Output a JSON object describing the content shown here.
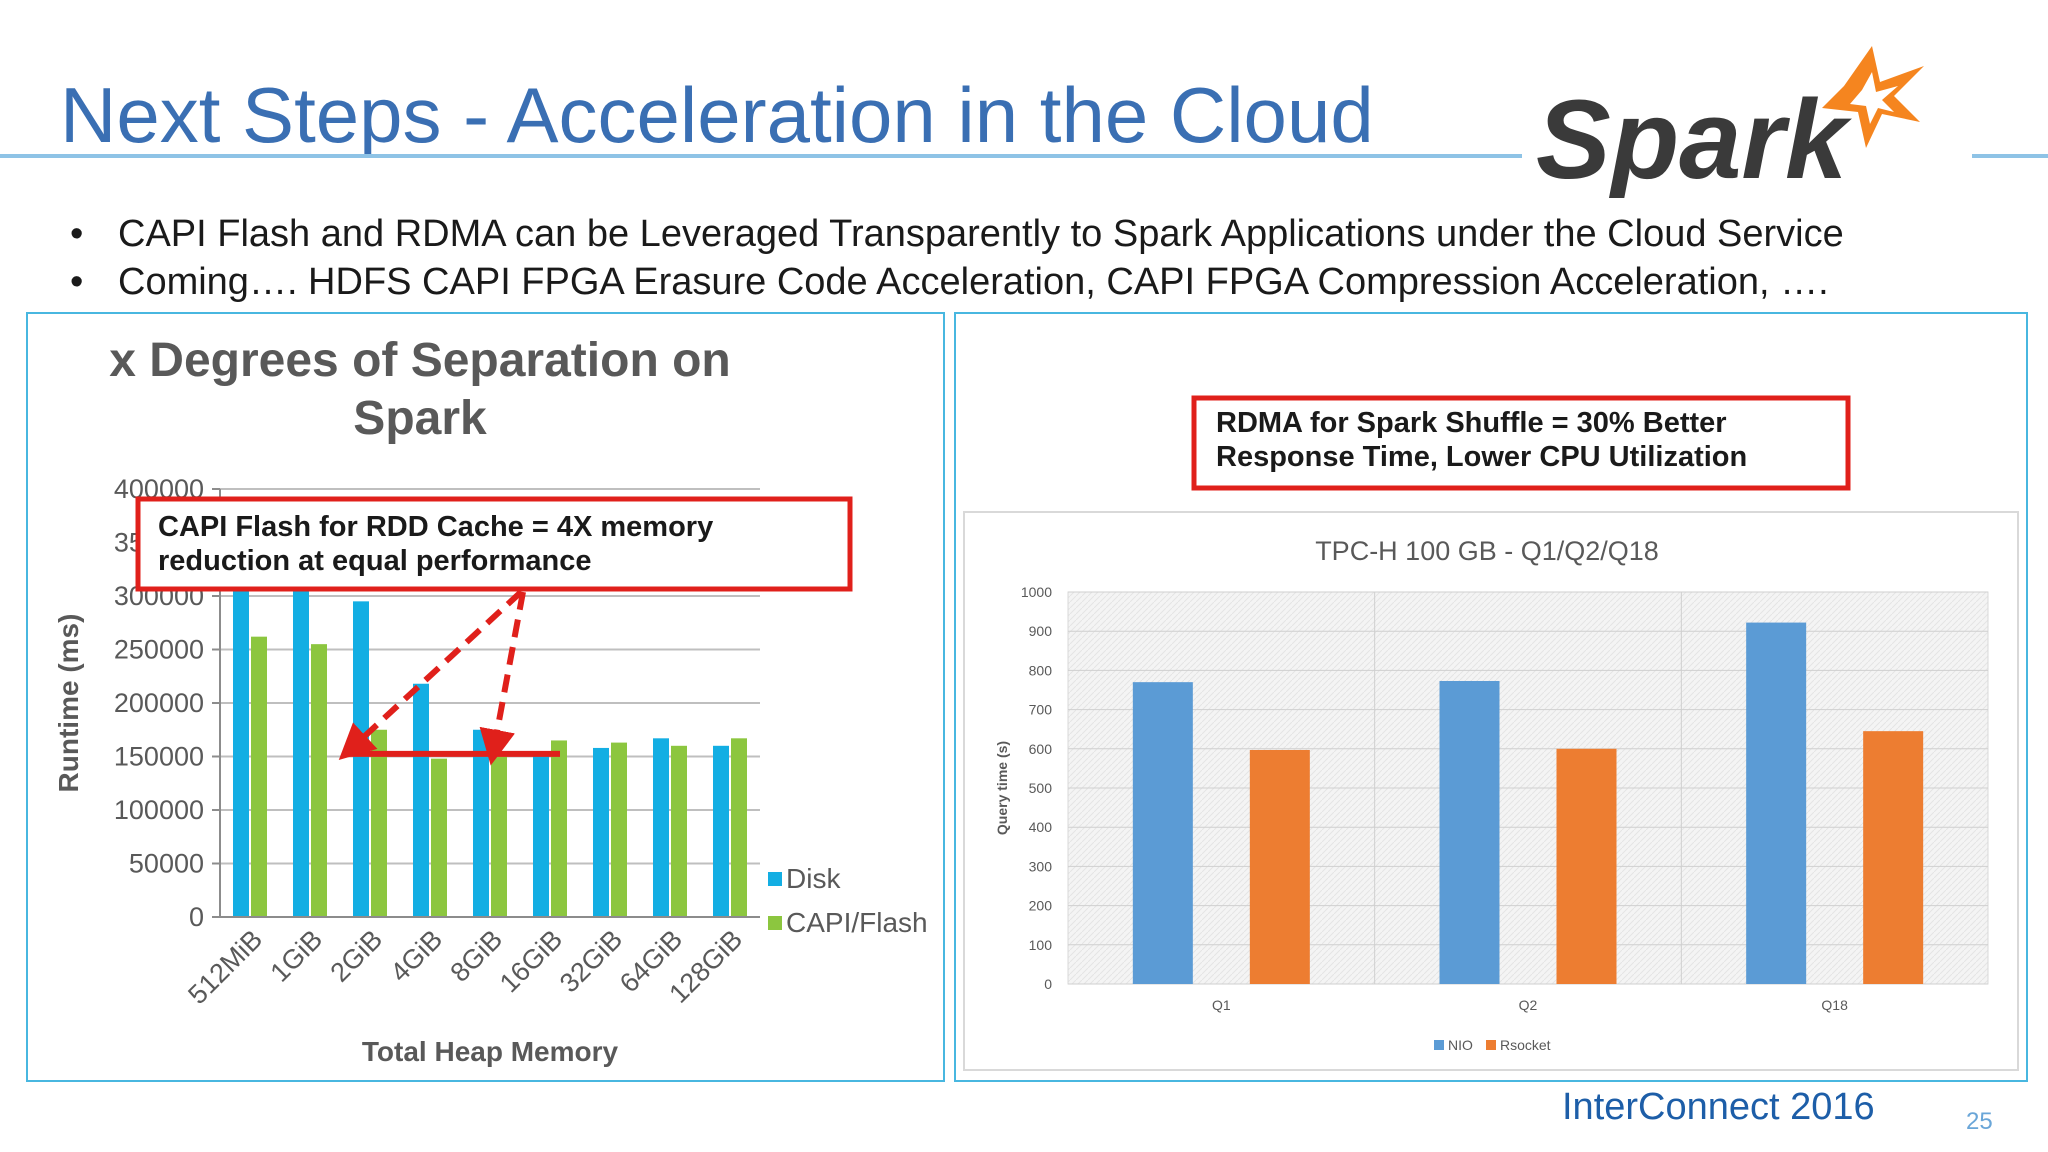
{
  "slide": {
    "title": "Next Steps - Acceleration in the Cloud",
    "bullets": [
      "CAPI Flash and RDMA can be Leveraged Transparently to Spark Applications under the Cloud Service",
      "Coming…. HDFS CAPI FPGA Erasure Code Acceleration,  CAPI FPGA Compression Acceleration, …."
    ],
    "logo_text": "Spark",
    "footer": "InterConnect 2016",
    "page_number": "25"
  },
  "colors": {
    "title": "#3a6fb3",
    "disk": "#13aee3",
    "capi_flash": "#8cc63f",
    "nio": "#5b9bd5",
    "rsocket": "#ed7d31",
    "callout_border": "#e0201b",
    "panel_border": "#48b7e0"
  },
  "chart_data": [
    {
      "type": "bar",
      "title_lines": [
        "x Degrees of Separation on",
        "Spark"
      ],
      "xlabel": "Total Heap Memory",
      "ylabel": "Runtime (ms)",
      "ylim": [
        0,
        400000
      ],
      "yticks": [
        0,
        50000,
        100000,
        150000,
        200000,
        250000,
        300000,
        350000,
        400000
      ],
      "categories": [
        "512MiB",
        "1GiB",
        "2GiB",
        "4GiB",
        "8GiB",
        "16GiB",
        "32GiB",
        "64GiB",
        "128GiB"
      ],
      "series": [
        {
          "name": "Disk",
          "values": [
            310000,
            305000,
            295000,
            218000,
            175000,
            152000,
            158000,
            167000,
            160000
          ]
        },
        {
          "name": "CAPI/Flash",
          "values": [
            262000,
            255000,
            175000,
            148000,
            155000,
            165000,
            163000,
            160000,
            167000
          ]
        }
      ],
      "legend": "right",
      "callout": "CAPI Flash for RDD Cache = 4X memory reduction at equal performance",
      "callout_lines": [
        "CAPI Flash for RDD Cache = 4X memory",
        "reduction at equal performance"
      ]
    },
    {
      "type": "bar",
      "title": "TPC-H 100 GB - Q1/Q2/Q18",
      "ylabel": "Query time (s)",
      "ylim": [
        0,
        1000
      ],
      "yticks": [
        0,
        100,
        200,
        300,
        400,
        500,
        600,
        700,
        800,
        900,
        1000
      ],
      "categories": [
        "Q1",
        "Q2",
        "Q18"
      ],
      "series": [
        {
          "name": "NIO",
          "values": [
            770,
            773,
            922
          ]
        },
        {
          "name": "Rsocket",
          "values": [
            597,
            600,
            645
          ]
        }
      ],
      "legend": "bottom",
      "grid": true,
      "callout_lines": [
        "RDMA for Spark Shuffle = 30% Better",
        "Response Time,  Lower CPU Utilization"
      ]
    }
  ]
}
